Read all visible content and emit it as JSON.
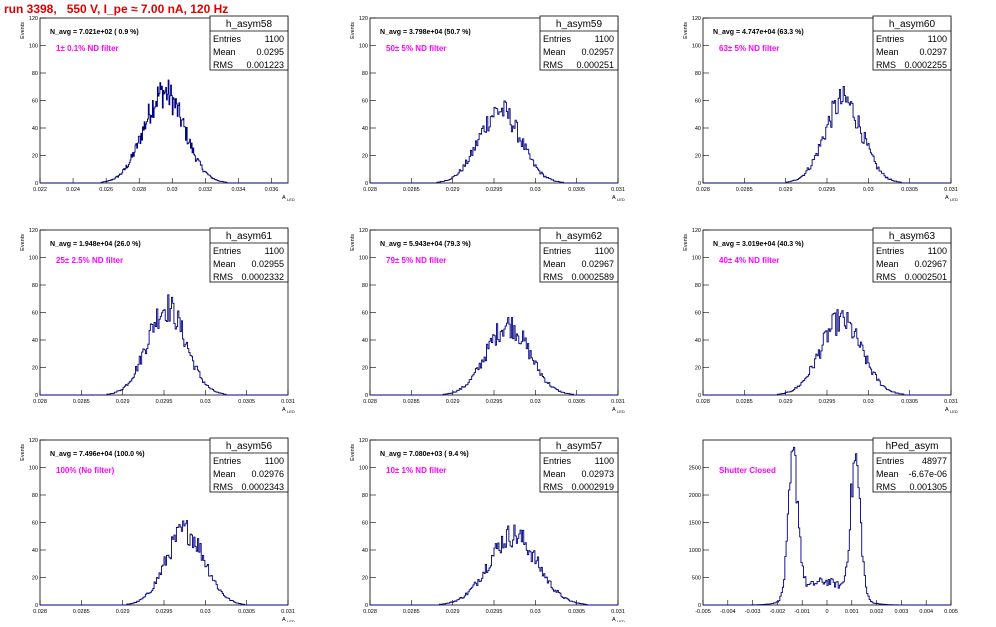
{
  "run_title": "run 3398,   550 V, I_pe ≈ 7.00 nA, 120 Hz",
  "colors": {
    "line": "#000080",
    "note": "#ff00ff",
    "title": "#e00000"
  },
  "chart_data": [
    {
      "type": "histogram",
      "name": "h_asym58",
      "ylabel": "Events",
      "xlabel": "A",
      "xlabel_sub": "LED",
      "xlim": [
        0.022,
        0.037
      ],
      "ylim": [
        0,
        120
      ],
      "xticks": [
        0.022,
        0.024,
        0.026,
        0.028,
        0.03,
        0.032,
        0.034,
        0.036
      ],
      "xtick_labels": [
        "0.022",
        "0.024",
        "0.026",
        "0.028",
        "0.03",
        "0.032",
        "0.034",
        "0.036"
      ],
      "yticks": [
        0,
        20,
        40,
        60,
        80,
        100,
        120
      ],
      "n_avg": "N_avg = 7.021e+02 ( 0.9 %)",
      "note": "1± 0.1% ND filter",
      "stats": {
        "title": "h_asym58",
        "entries": "1100",
        "mean": "0.0295",
        "rms": "0.001223"
      },
      "peaks": [
        {
          "mu": 0.0295,
          "sigma": 0.00122,
          "amp": 66
        }
      ],
      "bins": 300
    },
    {
      "type": "histogram",
      "name": "h_asym59",
      "ylabel": "Events",
      "xlabel": "A",
      "xlabel_sub": "LED",
      "xlim": [
        0.028,
        0.031
      ],
      "ylim": [
        0,
        120
      ],
      "xticks": [
        0.028,
        0.0285,
        0.029,
        0.0295,
        0.03,
        0.0305,
        0.031
      ],
      "xtick_labels": [
        "0.028",
        "0.0285",
        "0.029",
        "0.0295",
        "0.03",
        "0.0305",
        "0.031"
      ],
      "yticks": [
        0,
        20,
        40,
        60,
        80,
        100,
        120
      ],
      "n_avg": "N_avg = 3.798e+04 (50.7 %)",
      "note": "50± 5% ND filter",
      "stats": {
        "title": "h_asym59",
        "entries": "1100",
        "mean": "0.02957",
        "rms": "0.000251"
      },
      "peaks": [
        {
          "mu": 0.02957,
          "sigma": 0.000251,
          "amp": 53
        }
      ],
      "bins": 200
    },
    {
      "type": "histogram",
      "name": "h_asym60",
      "ylabel": "Events",
      "xlabel": "A",
      "xlabel_sub": "LED",
      "xlim": [
        0.028,
        0.031
      ],
      "ylim": [
        0,
        120
      ],
      "xticks": [
        0.028,
        0.0285,
        0.029,
        0.0295,
        0.03,
        0.0305,
        0.031
      ],
      "xtick_labels": [
        "0.028",
        "0.0285",
        "0.029",
        "0.0295",
        "0.03",
        "0.0305",
        "0.031"
      ],
      "yticks": [
        0,
        20,
        40,
        60,
        80,
        100,
        120
      ],
      "n_avg": "N_avg = 4.747e+04 (63.3 %)",
      "note": "63± 5% ND filter",
      "stats": {
        "title": "h_asym60",
        "entries": "1100",
        "mean": "0.0297",
        "rms": "0.0002255"
      },
      "peaks": [
        {
          "mu": 0.0297,
          "sigma": 0.000226,
          "amp": 60
        }
      ],
      "bins": 200
    },
    {
      "type": "histogram",
      "name": "h_asym61",
      "ylabel": "Events",
      "xlabel": "A",
      "xlabel_sub": "LED",
      "xlim": [
        0.028,
        0.031
      ],
      "ylim": [
        0,
        120
      ],
      "xticks": [
        0.028,
        0.0285,
        0.029,
        0.0295,
        0.03,
        0.0305,
        0.031
      ],
      "xtick_labels": [
        "0.028",
        "0.0285",
        "0.029",
        "0.0295",
        "0.03",
        "0.0305",
        "0.031"
      ],
      "yticks": [
        0,
        20,
        40,
        60,
        80,
        100,
        120
      ],
      "n_avg": "N_avg = 1.948e+04 (26.0 %)",
      "note": "25± 2.5% ND filter",
      "stats": {
        "title": "h_asym61",
        "entries": "1100",
        "mean": "0.02955",
        "rms": "0.0002332"
      },
      "peaks": [
        {
          "mu": 0.02953,
          "sigma": 0.000233,
          "amp": 64
        }
      ],
      "bins": 200
    },
    {
      "type": "histogram",
      "name": "h_asym62",
      "ylabel": "Events",
      "xlabel": "A",
      "xlabel_sub": "LED",
      "xlim": [
        0.028,
        0.031
      ],
      "ylim": [
        0,
        120
      ],
      "xticks": [
        0.028,
        0.0285,
        0.029,
        0.0295,
        0.03,
        0.0305,
        0.031
      ],
      "xtick_labels": [
        "0.028",
        "0.0285",
        "0.029",
        "0.0295",
        "0.03",
        "0.0305",
        "0.031"
      ],
      "yticks": [
        0,
        20,
        40,
        60,
        80,
        100,
        120
      ],
      "n_avg": "N_avg = 5.943e+04 (79.3 %)",
      "note": "79± 5% ND filter",
      "stats": {
        "title": "h_asym62",
        "entries": "1100",
        "mean": "0.02967",
        "rms": "0.0002589"
      },
      "peaks": [
        {
          "mu": 0.02967,
          "sigma": 0.000259,
          "amp": 51
        }
      ],
      "bins": 200
    },
    {
      "type": "histogram",
      "name": "h_asym63",
      "ylabel": "Events",
      "xlabel": "A",
      "xlabel_sub": "LED",
      "xlim": [
        0.028,
        0.031
      ],
      "ylim": [
        0,
        120
      ],
      "xticks": [
        0.028,
        0.0285,
        0.029,
        0.0295,
        0.03,
        0.0305,
        0.031
      ],
      "xtick_labels": [
        "0.028",
        "0.0285",
        "0.029",
        "0.0295",
        "0.03",
        "0.0305",
        "0.031"
      ],
      "yticks": [
        0,
        20,
        40,
        60,
        80,
        100,
        120
      ],
      "n_avg": "N_avg = 3.019e+04 (40.3 %)",
      "note": "40± 4% ND filter",
      "stats": {
        "title": "h_asym63",
        "entries": "1100",
        "mean": "0.02967",
        "rms": "0.0002501"
      },
      "peaks": [
        {
          "mu": 0.02967,
          "sigma": 0.00025,
          "amp": 54
        }
      ],
      "bins": 200
    },
    {
      "type": "histogram",
      "name": "h_asym56",
      "ylabel": "Events",
      "xlabel": "A",
      "xlabel_sub": "LED",
      "xlim": [
        0.028,
        0.031
      ],
      "ylim": [
        0,
        120
      ],
      "xticks": [
        0.028,
        0.0285,
        0.029,
        0.0295,
        0.03,
        0.0305,
        0.031
      ],
      "xtick_labels": [
        "0.028",
        "0.0285",
        "0.029",
        "0.0295",
        "0.03",
        "0.0305",
        "0.031"
      ],
      "yticks": [
        0,
        20,
        40,
        60,
        80,
        100,
        120
      ],
      "n_avg": "N_avg = 7.496e+04 (100.0 %)",
      "note": "100% (No filter)",
      "stats": {
        "title": "h_asym56",
        "entries": "1100",
        "mean": "0.02976",
        "rms": "0.0002343"
      },
      "peaks": [
        {
          "mu": 0.02976,
          "sigma": 0.000234,
          "amp": 54
        }
      ],
      "bins": 200
    },
    {
      "type": "histogram",
      "name": "h_asym57",
      "ylabel": "Events",
      "xlabel": "A",
      "xlabel_sub": "LED",
      "xlim": [
        0.028,
        0.031
      ],
      "ylim": [
        0,
        120
      ],
      "xticks": [
        0.028,
        0.0285,
        0.029,
        0.0295,
        0.03,
        0.0305,
        0.031
      ],
      "xtick_labels": [
        "0.028",
        "0.0285",
        "0.029",
        "0.0295",
        "0.03",
        "0.0305",
        "0.031"
      ],
      "yticks": [
        0,
        20,
        40,
        60,
        80,
        100,
        120
      ],
      "n_avg": "N_avg = 7.080e+03 ( 9.4 %)",
      "note": "10± 1% ND filter",
      "stats": {
        "title": "h_asym57",
        "entries": "1100",
        "mean": "0.02973",
        "rms": "0.0002919"
      },
      "peaks": [
        {
          "mu": 0.02973,
          "sigma": 0.000292,
          "amp": 51
        }
      ],
      "bins": 200
    },
    {
      "type": "histogram",
      "name": "hPed_asym",
      "ylabel": "",
      "xlabel": "",
      "xlabel_sub": "",
      "xlim": [
        -0.005,
        0.005
      ],
      "ylim": [
        0,
        3000
      ],
      "xticks": [
        -0.005,
        -0.004,
        -0.003,
        -0.002,
        -0.001,
        0,
        0.001,
        0.002,
        0.003,
        0.004,
        0.005
      ],
      "xtick_labels": [
        "-0.005",
        "-0.004",
        "-0.003",
        "-0.002",
        "-0.001",
        "0",
        "0.001",
        "0.002",
        "0.003",
        "0.004",
        "0.005"
      ],
      "yticks": [
        0,
        500,
        1000,
        1500,
        2000,
        2500
      ],
      "n_avg": "",
      "note": "Shutter Closed",
      "stats": {
        "title": "hPed_asym",
        "entries": "48977",
        "mean": "-6.67e-06",
        "rms": "0.001305"
      },
      "peaks": [
        {
          "mu": -0.00135,
          "sigma": 0.0002,
          "amp": 2450
        },
        {
          "mu": 0.00115,
          "sigma": 0.0002,
          "amp": 2450
        },
        {
          "mu": -0.0001,
          "sigma": 0.0009,
          "amp": 430
        }
      ],
      "bins": 200
    }
  ]
}
